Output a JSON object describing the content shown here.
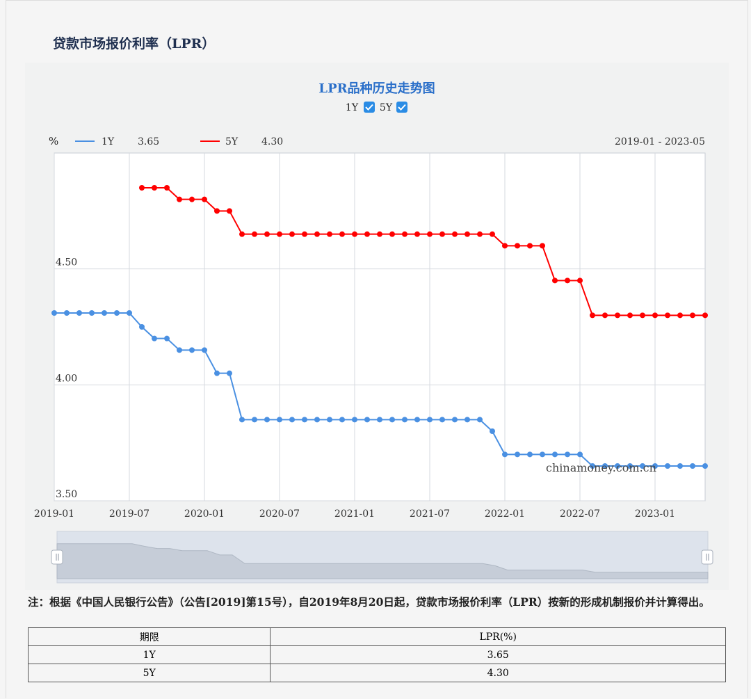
{
  "page": {
    "title": "贷款市场报价利率（LPR）",
    "note": "注：根据《中国人民银行公告》（公告[2019]第15号），自2019年8月20日起，贷款市场报价利率（LPR）按新的形成机制报价并计算得出。"
  },
  "chart_data": {
    "type": "line",
    "title": "LPR品种历史走势图",
    "legend_checks": [
      {
        "label": "1Y",
        "checked": true
      },
      {
        "label": "5Y",
        "checked": true
      }
    ],
    "unit": "%",
    "range_label": "2019-01 - 2023-05",
    "watermark": "chinamoney.com.cn",
    "y_ticks": [
      "4.50",
      "4.00",
      "3.50"
    ],
    "ylim": [
      3.5,
      5.0
    ],
    "x_ticks": [
      "2019-01",
      "2019-07",
      "2020-01",
      "2020-07",
      "2021-01",
      "2021-07",
      "2022-01",
      "2022-07",
      "2023-01"
    ],
    "x_start": "2019-01",
    "series": [
      {
        "name": "1Y",
        "latest": "3.65",
        "color": "#4a90e2",
        "start": "2019-01",
        "values": [
          4.31,
          4.31,
          4.31,
          4.31,
          4.31,
          4.31,
          4.31,
          4.25,
          4.2,
          4.2,
          4.15,
          4.15,
          4.15,
          4.05,
          4.05,
          3.85,
          3.85,
          3.85,
          3.85,
          3.85,
          3.85,
          3.85,
          3.85,
          3.85,
          3.85,
          3.85,
          3.85,
          3.85,
          3.85,
          3.85,
          3.85,
          3.85,
          3.85,
          3.85,
          3.85,
          3.8,
          3.7,
          3.7,
          3.7,
          3.7,
          3.7,
          3.7,
          3.7,
          3.65,
          3.65,
          3.65,
          3.65,
          3.65,
          3.65,
          3.65,
          3.65,
          3.65,
          3.65
        ]
      },
      {
        "name": "5Y",
        "latest": "4.30",
        "color": "#ff0000",
        "start": "2019-08",
        "values": [
          4.85,
          4.85,
          4.85,
          4.8,
          4.8,
          4.8,
          4.75,
          4.75,
          4.65,
          4.65,
          4.65,
          4.65,
          4.65,
          4.65,
          4.65,
          4.65,
          4.65,
          4.65,
          4.65,
          4.65,
          4.65,
          4.65,
          4.65,
          4.65,
          4.65,
          4.65,
          4.65,
          4.65,
          4.65,
          4.6,
          4.6,
          4.6,
          4.6,
          4.45,
          4.45,
          4.45,
          4.3,
          4.3,
          4.3,
          4.3,
          4.3,
          4.3,
          4.3,
          4.3,
          4.3,
          4.3
        ]
      }
    ]
  },
  "table": {
    "headers": [
      "期限",
      "LPR(%)"
    ],
    "rows": [
      [
        "1Y",
        "3.65"
      ],
      [
        "5Y",
        "4.30"
      ]
    ]
  }
}
